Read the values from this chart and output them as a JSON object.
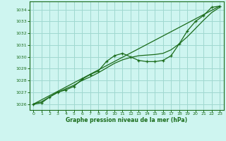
{
  "title": "Graphe pression niveau de la mer (hPa)",
  "bg_color": "#cef5f0",
  "grid_color": "#a0d8d0",
  "line_color": "#1a6b1a",
  "marker_color": "#1a6b1a",
  "tick_color": "#1a6b1a",
  "xlim": [
    -0.5,
    23.5
  ],
  "ylim": [
    1025.5,
    1034.7
  ],
  "yticks": [
    1026,
    1027,
    1028,
    1029,
    1030,
    1031,
    1032,
    1033,
    1034
  ],
  "xticks": [
    0,
    1,
    2,
    3,
    4,
    5,
    6,
    7,
    8,
    9,
    10,
    11,
    12,
    13,
    14,
    15,
    16,
    17,
    18,
    19,
    20,
    21,
    22,
    23
  ],
  "series1_x": [
    0,
    1,
    2,
    3,
    4,
    5,
    6,
    7,
    8,
    9,
    10,
    11,
    12,
    13,
    14,
    15,
    16,
    17,
    18,
    19,
    20,
    21,
    22,
    23
  ],
  "series1_y": [
    1026.0,
    1026.1,
    1026.6,
    1027.0,
    1027.2,
    1027.5,
    1028.1,
    1028.5,
    1028.8,
    1029.6,
    1030.1,
    1030.3,
    1030.0,
    1029.7,
    1029.6,
    1029.6,
    1029.7,
    1030.1,
    1031.1,
    1032.2,
    1033.0,
    1033.5,
    1034.2,
    1034.3
  ],
  "series2_x": [
    0,
    23
  ],
  "series2_y": [
    1026.0,
    1034.3
  ],
  "series3_x": [
    0,
    1,
    2,
    3,
    4,
    5,
    6,
    7,
    8,
    9,
    10,
    11,
    12,
    13,
    14,
    15,
    16,
    17,
    18,
    19,
    20,
    21,
    22,
    23
  ],
  "series3_y": [
    1026.0,
    1026.2,
    1026.6,
    1027.0,
    1027.3,
    1027.6,
    1028.0,
    1028.3,
    1028.65,
    1029.05,
    1029.45,
    1029.75,
    1029.95,
    1030.1,
    1030.15,
    1030.2,
    1030.3,
    1030.6,
    1031.1,
    1031.7,
    1032.4,
    1033.1,
    1033.75,
    1034.2
  ]
}
